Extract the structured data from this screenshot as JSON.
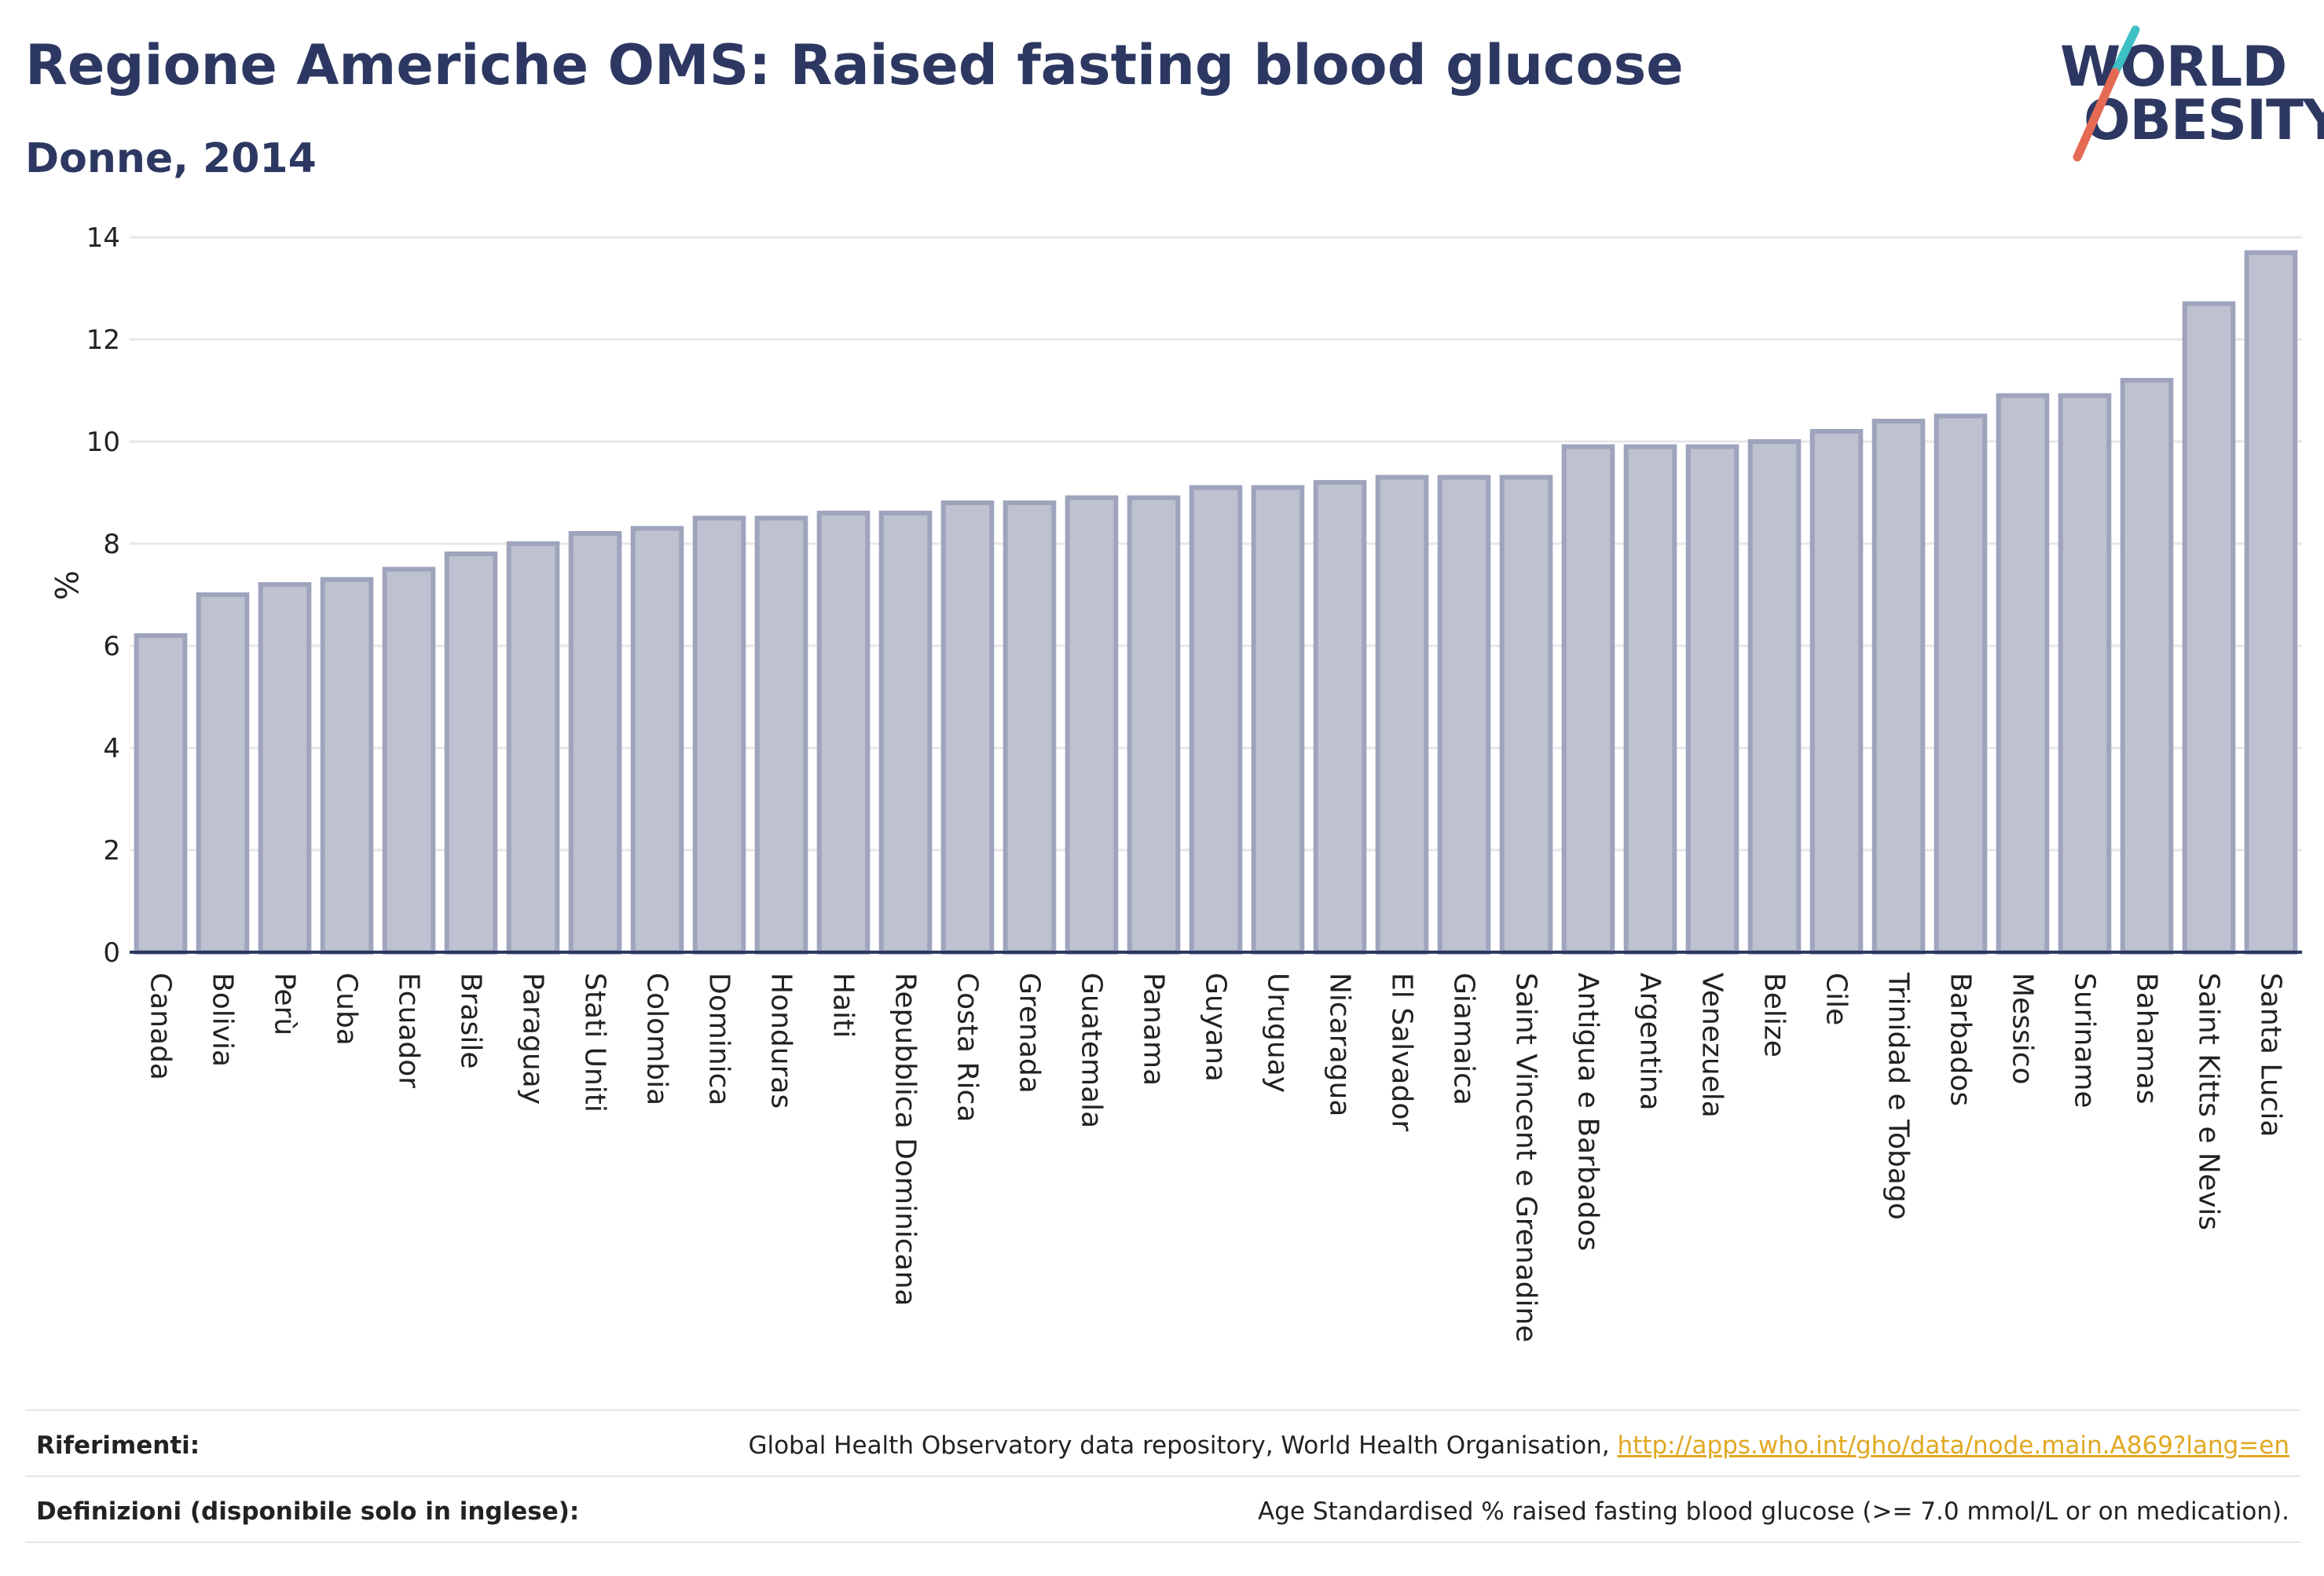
{
  "header": {
    "title": "Regione Americhe OMS: Raised fasting blood glucose",
    "subtitle": "Donne, 2014"
  },
  "logo": {
    "line1": "WORLD",
    "line2": "OBESITY",
    "slash_colors": [
      "#3ec1c4",
      "#e56a54"
    ]
  },
  "colors": {
    "bar_fill": "#bec1cf",
    "bar_stroke": "#9fa4bd",
    "axis": "#2d3862",
    "grid": "#e7e7ea",
    "link": "#e1a822"
  },
  "chart_data": {
    "type": "bar",
    "title": "Regione Americhe OMS: Raised fasting blood glucose",
    "subtitle": "Donne, 2014",
    "xlabel": "",
    "ylabel": "%",
    "ylim": [
      0,
      14
    ],
    "yticks": [
      0,
      2,
      4,
      6,
      8,
      10,
      12,
      14
    ],
    "grid": true,
    "categories": [
      "Canada",
      "Bolivia",
      "Perù",
      "Cuba",
      "Ecuador",
      "Brasile",
      "Paraguay",
      "Stati Uniti",
      "Colombia",
      "Dominica",
      "Honduras",
      "Haiti",
      "Repubblica Dominicana",
      "Costa Rica",
      "Grenada",
      "Guatemala",
      "Panama",
      "Guyana",
      "Uruguay",
      "Nicaragua",
      "El Salvador",
      "Giamaica",
      "Saint Vincent e Grenadine",
      "Antigua e Barbados",
      "Argentina",
      "Venezuela",
      "Belize",
      "Cile",
      "Trinidad e Tobago",
      "Barbados",
      "Messico",
      "Suriname",
      "Bahamas",
      "Saint Kitts e Nevis",
      "Santa Lucia"
    ],
    "values": [
      6.2,
      7.0,
      7.2,
      7.3,
      7.5,
      7.8,
      8.0,
      8.2,
      8.3,
      8.5,
      8.5,
      8.6,
      8.6,
      8.8,
      8.8,
      8.9,
      8.9,
      9.1,
      9.1,
      9.2,
      9.3,
      9.3,
      9.3,
      9.9,
      9.9,
      9.9,
      10.0,
      10.2,
      10.4,
      10.5,
      10.9,
      10.9,
      11.2,
      12.7,
      13.7
    ]
  },
  "footer": {
    "references_label": "Riferimenti:",
    "references_text": "Global Health Observatory data repository, World Health Organisation, ",
    "references_link": "http://apps.who.int/gho/data/node.main.A869?lang=en",
    "definitions_label": "Definizioni (disponibile solo in inglese):",
    "definitions_text": "Age Standardised % raised fasting blood glucose (>= 7.0 mmol/L or on medication)."
  }
}
